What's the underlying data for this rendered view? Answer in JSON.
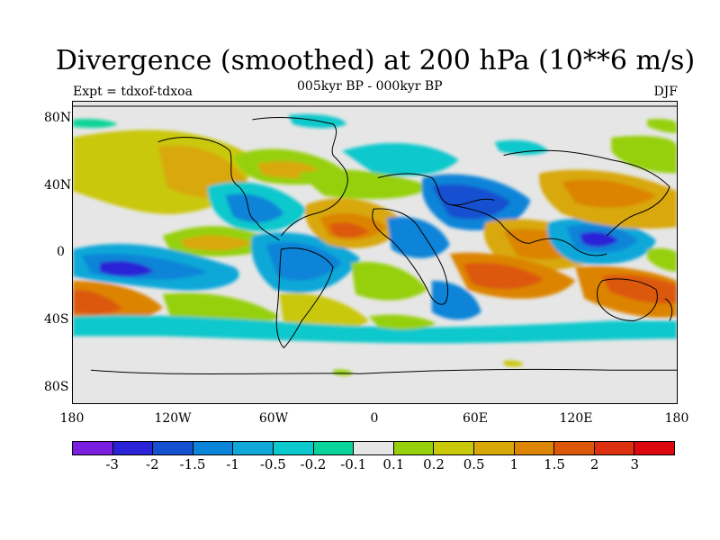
{
  "title": "Divergence (smoothed) at 200 hPa (10**6 m/s)",
  "subtitle": "005kyr BP - 000kyr BP",
  "experiment": "Expt = tdxof-tdxoa",
  "season": "DJF",
  "lat_labels": [
    "80N",
    "40N",
    "0",
    "40S",
    "80S"
  ],
  "lon_labels": [
    "180",
    "120W",
    "60W",
    "0",
    "60E",
    "120E",
    "180"
  ],
  "colorbar": {
    "colors": [
      "#7a1fe0",
      "#2a22d6",
      "#1450d0",
      "#0a84d8",
      "#10a8d8",
      "#0ac8cc",
      "#0ad49a",
      "#e6e6e6",
      "#96d00c",
      "#cac80a",
      "#d8a80a",
      "#dc8404",
      "#dc5808",
      "#dc3010",
      "#dc0810"
    ],
    "tick_labels": [
      "-3",
      "-2",
      "-1.5",
      "-1",
      "-0.5",
      "-0.2",
      "-0.1",
      "0.1",
      "0.2",
      "0.5",
      "1",
      "1.5",
      "2",
      "3"
    ]
  }
}
